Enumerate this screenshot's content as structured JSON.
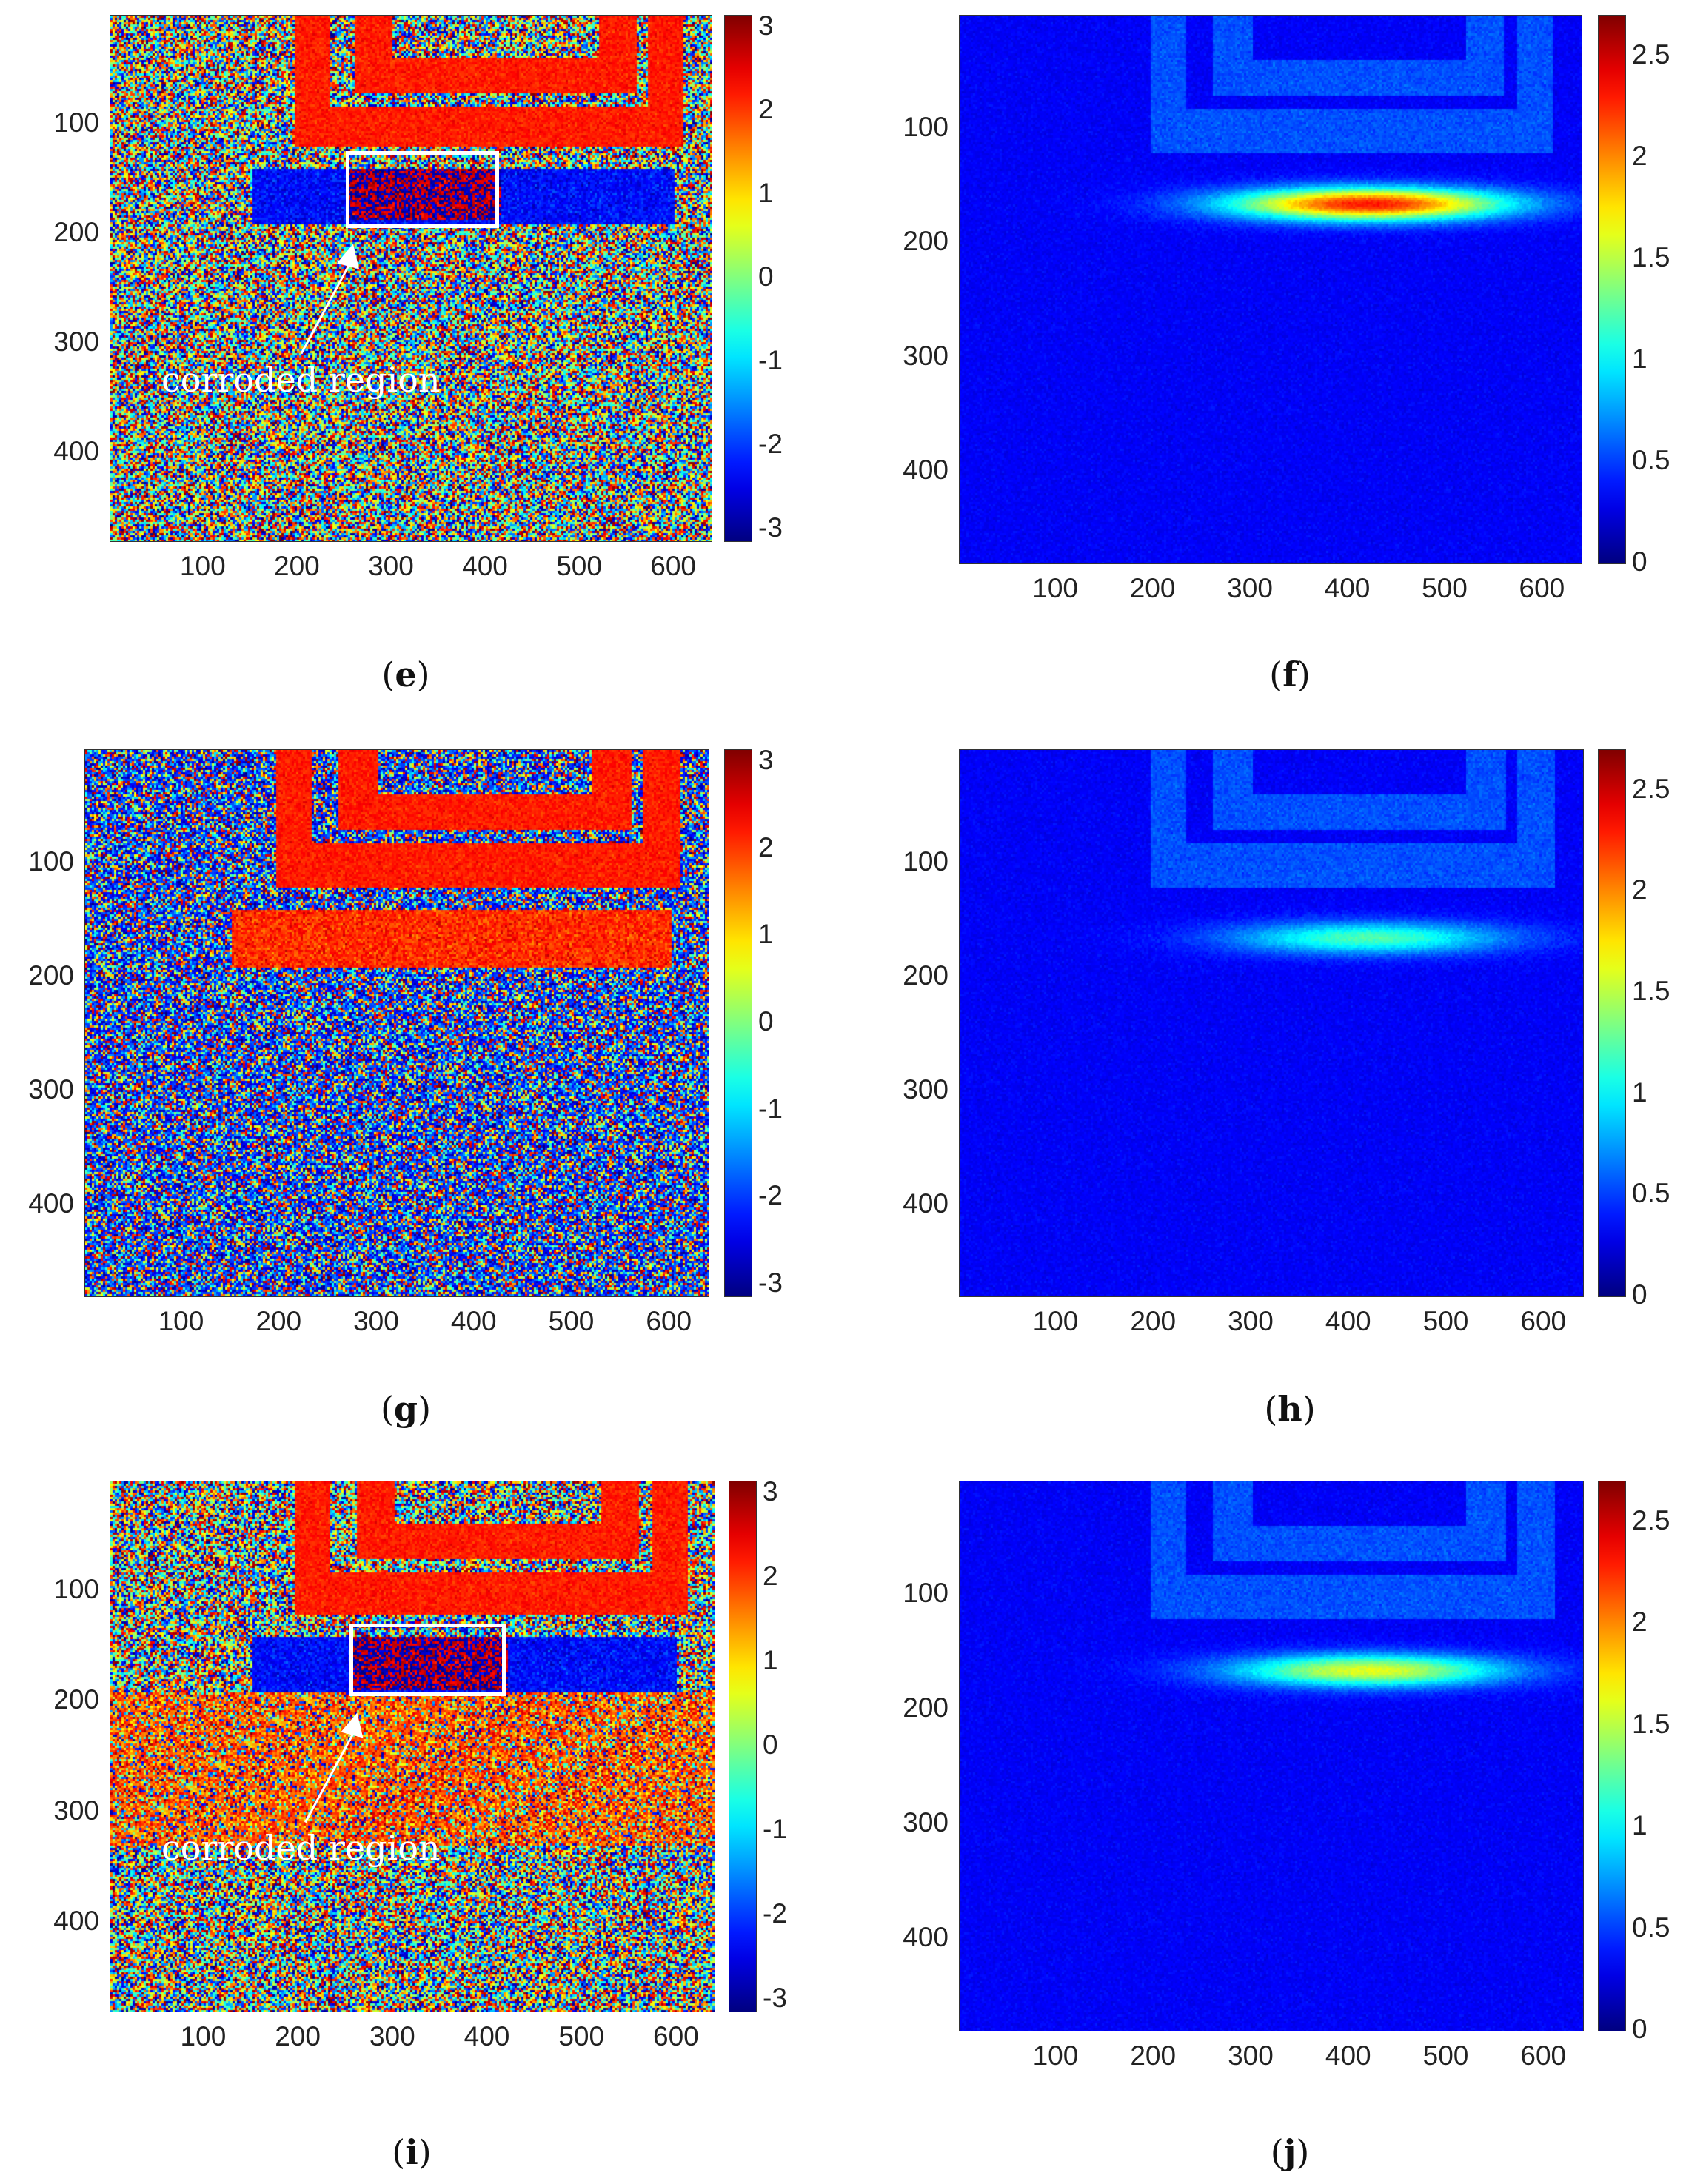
{
  "chart_data": [
    {
      "type": "heatmap",
      "panel": "e",
      "caption_letter": "e",
      "map": "phase",
      "x_range": [
        1,
        640
      ],
      "y_range": [
        1,
        480
      ],
      "y_reversed": true,
      "x_ticks": [
        "100",
        "200",
        "300",
        "400",
        "500",
        "600"
      ],
      "y_ticks": [
        "100",
        "200",
        "300",
        "400"
      ],
      "colorbar": {
        "min": -3.14,
        "max": 3.14,
        "ticks": [
          "3",
          "2",
          "1",
          "0",
          "-1",
          "-2",
          "-3"
        ],
        "tick_values": [
          3,
          2,
          1,
          0,
          -1,
          -2,
          -3
        ],
        "colormap": "jet"
      },
      "annotation": {
        "text": "corroded region",
        "box_x": [
          252,
          415
        ],
        "box_y": [
          125,
          195
        ]
      }
    },
    {
      "type": "heatmap",
      "panel": "f",
      "caption_letter": "f",
      "map": "amplitude",
      "x_range": [
        1,
        640
      ],
      "y_range": [
        1,
        480
      ],
      "y_reversed": true,
      "x_ticks": [
        "100",
        "200",
        "300",
        "400",
        "500",
        "600"
      ],
      "y_ticks": [
        "100",
        "200",
        "300",
        "400"
      ],
      "colorbar": {
        "min": 0,
        "max": 2.7,
        "ticks": [
          "2.5",
          "2",
          "1.5",
          "1",
          "0.5",
          "0"
        ],
        "tick_values": [
          2.5,
          2,
          1.5,
          1,
          0.5,
          0
        ],
        "colormap": "jet"
      },
      "peak": 2.4
    },
    {
      "type": "heatmap",
      "panel": "g",
      "caption_letter": "g",
      "map": "phase",
      "x_range": [
        1,
        640
      ],
      "y_range": [
        1,
        480
      ],
      "y_reversed": true,
      "x_ticks": [
        "100",
        "200",
        "300",
        "400",
        "500",
        "600"
      ],
      "y_ticks": [
        "100",
        "200",
        "300",
        "400"
      ],
      "colorbar": {
        "min": -3.14,
        "max": 3.14,
        "ticks": [
          "3",
          "2",
          "1",
          "0",
          "-1",
          "-2",
          "-3"
        ],
        "tick_values": [
          3,
          2,
          1,
          0,
          -1,
          -2,
          -3
        ],
        "colormap": "jet"
      }
    },
    {
      "type": "heatmap",
      "panel": "h",
      "caption_letter": "h",
      "map": "amplitude",
      "x_range": [
        1,
        640
      ],
      "y_range": [
        1,
        480
      ],
      "y_reversed": true,
      "x_ticks": [
        "100",
        "200",
        "300",
        "400",
        "500",
        "600"
      ],
      "y_ticks": [
        "100",
        "200",
        "300",
        "400"
      ],
      "colorbar": {
        "min": 0,
        "max": 2.7,
        "ticks": [
          "2.5",
          "2",
          "1.5",
          "1",
          "0.5",
          "0"
        ],
        "tick_values": [
          2.5,
          2,
          1.5,
          1,
          0.5,
          0
        ],
        "colormap": "jet"
      },
      "peak": 1.3
    },
    {
      "type": "heatmap",
      "panel": "i",
      "caption_letter": "i",
      "map": "phase",
      "x_range": [
        1,
        640
      ],
      "y_range": [
        1,
        480
      ],
      "y_reversed": true,
      "x_ticks": [
        "100",
        "200",
        "300",
        "400",
        "500",
        "600"
      ],
      "y_ticks": [
        "100",
        "200",
        "300",
        "400"
      ],
      "colorbar": {
        "min": -3.14,
        "max": 3.14,
        "ticks": [
          "3",
          "2",
          "1",
          "0",
          "-1",
          "-2",
          "-3"
        ],
        "tick_values": [
          3,
          2,
          1,
          0,
          -1,
          -2,
          -3
        ],
        "colormap": "jet"
      },
      "annotation": {
        "text": "corroded region",
        "box_x": [
          255,
          420
        ],
        "box_y": [
          130,
          196
        ]
      }
    },
    {
      "type": "heatmap",
      "panel": "j",
      "caption_letter": "j",
      "map": "amplitude",
      "x_range": [
        1,
        640
      ],
      "y_range": [
        1,
        480
      ],
      "y_reversed": true,
      "x_ticks": [
        "100",
        "200",
        "300",
        "400",
        "500",
        "600"
      ],
      "y_ticks": [
        "100",
        "200",
        "300",
        "400"
      ],
      "colorbar": {
        "min": 0,
        "max": 2.7,
        "ticks": [
          "2.5",
          "2",
          "1.5",
          "1",
          "0.5",
          "0"
        ],
        "tick_values": [
          2.5,
          2,
          1.5,
          1,
          0.5,
          0
        ],
        "colormap": "jet"
      },
      "peak": 1.7
    }
  ]
}
